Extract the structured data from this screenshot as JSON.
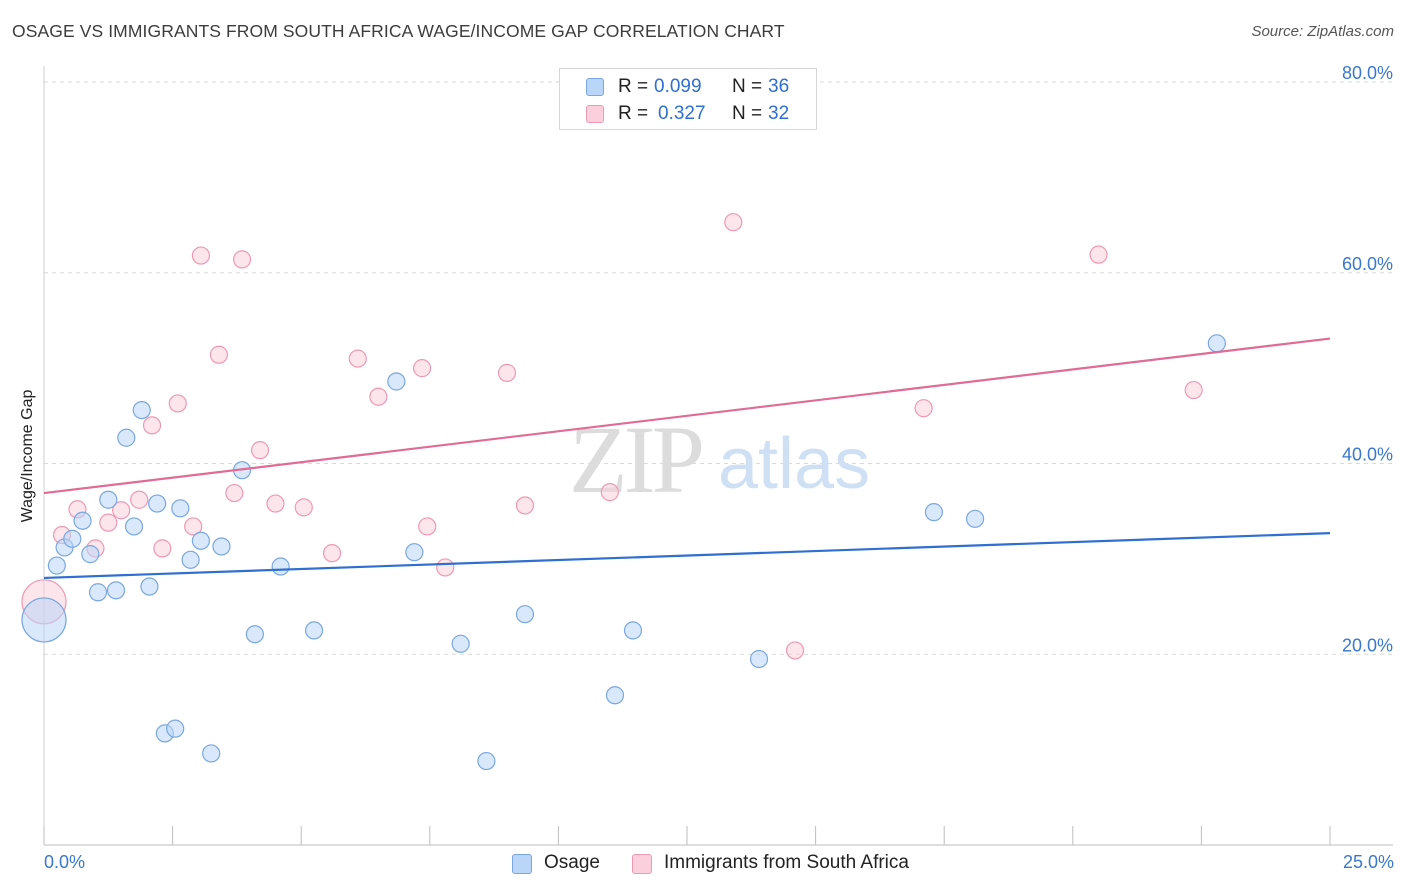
{
  "title": "OSAGE VS IMMIGRANTS FROM SOUTH AFRICA WAGE/INCOME GAP CORRELATION CHART",
  "source": "Source: ZipAtlas.com",
  "watermark": {
    "zip": "ZIP",
    "atlas": "atlas"
  },
  "legend": {
    "rows": [
      {
        "r_label": "R =",
        "r_value": "0.099",
        "n_label": "N =",
        "n_value": "36",
        "color": "#b9d5f7",
        "border": "#7aa7e0"
      },
      {
        "r_label": "R =",
        "r_value": "0.327",
        "n_label": "N =",
        "n_value": "32",
        "color": "#fbcfdc",
        "border": "#ee99b4"
      }
    ]
  },
  "colors": {
    "blue_fill": "#b9d5f7",
    "blue_stroke": "#7aa7e0",
    "blue_line": "#2e6fd1",
    "pink_fill": "#fbcfdc",
    "pink_stroke": "#ee99b4",
    "pink_line": "#e06b94",
    "axis_label": "#3a78cc",
    "grid": "#d9d9d9"
  },
  "chart_data": {
    "type": "scatter",
    "title": "OSAGE VS IMMIGRANTS FROM SOUTH AFRICA WAGE/INCOME GAP CORRELATION CHART",
    "xlabel": "",
    "ylabel": "Wage/Income Gap",
    "xlim": [
      0,
      25
    ],
    "ylim": [
      0,
      80
    ],
    "x_tick_labels": [
      "0.0%",
      "25.0%"
    ],
    "y_ticks": [
      20,
      40,
      60,
      80
    ],
    "y_tick_labels": [
      "20.0%",
      "40.0%",
      "60.0%",
      "80.0%"
    ],
    "grid": true,
    "legend_position": "top-center",
    "series": [
      {
        "name": "Osage",
        "color": "#b9d5f7",
        "trend": {
          "x": [
            0,
            25
          ],
          "y": [
            28.0,
            32.7
          ]
        },
        "points": [
          {
            "x": 0.0,
            "y": 23.6,
            "size": "large"
          },
          {
            "x": 0.25,
            "y": 29.3
          },
          {
            "x": 0.4,
            "y": 31.2
          },
          {
            "x": 0.55,
            "y": 32.1
          },
          {
            "x": 0.75,
            "y": 34.0
          },
          {
            "x": 0.9,
            "y": 30.5
          },
          {
            "x": 1.05,
            "y": 26.5
          },
          {
            "x": 1.25,
            "y": 36.2
          },
          {
            "x": 1.4,
            "y": 26.7
          },
          {
            "x": 1.6,
            "y": 42.7
          },
          {
            "x": 1.75,
            "y": 33.4
          },
          {
            "x": 1.9,
            "y": 45.6
          },
          {
            "x": 2.05,
            "y": 27.1
          },
          {
            "x": 2.2,
            "y": 35.8
          },
          {
            "x": 2.35,
            "y": 11.7
          },
          {
            "x": 2.55,
            "y": 12.2
          },
          {
            "x": 2.65,
            "y": 35.3
          },
          {
            "x": 2.85,
            "y": 29.9
          },
          {
            "x": 3.05,
            "y": 31.9
          },
          {
            "x": 3.25,
            "y": 9.6
          },
          {
            "x": 3.45,
            "y": 31.3
          },
          {
            "x": 3.85,
            "y": 39.3
          },
          {
            "x": 4.1,
            "y": 22.1
          },
          {
            "x": 4.6,
            "y": 29.2
          },
          {
            "x": 5.25,
            "y": 22.5
          },
          {
            "x": 6.85,
            "y": 48.6
          },
          {
            "x": 7.2,
            "y": 30.7
          },
          {
            "x": 8.1,
            "y": 21.1
          },
          {
            "x": 8.6,
            "y": 8.8
          },
          {
            "x": 9.35,
            "y": 24.2
          },
          {
            "x": 11.1,
            "y": 15.7
          },
          {
            "x": 11.45,
            "y": 22.5
          },
          {
            "x": 13.9,
            "y": 19.5
          },
          {
            "x": 17.3,
            "y": 34.9
          },
          {
            "x": 18.1,
            "y": 34.2
          },
          {
            "x": 22.8,
            "y": 52.6
          }
        ]
      },
      {
        "name": "Immigrants from South Africa",
        "color": "#fbcfdc",
        "trend": {
          "x": [
            0,
            25
          ],
          "y": [
            36.9,
            53.1
          ]
        },
        "points": [
          {
            "x": 0.0,
            "y": 25.5,
            "size": "large"
          },
          {
            "x": 0.35,
            "y": 32.5
          },
          {
            "x": 0.65,
            "y": 35.2
          },
          {
            "x": 1.0,
            "y": 31.1
          },
          {
            "x": 1.25,
            "y": 33.8
          },
          {
            "x": 1.5,
            "y": 35.1
          },
          {
            "x": 1.85,
            "y": 36.2
          },
          {
            "x": 2.1,
            "y": 44.0
          },
          {
            "x": 2.3,
            "y": 31.1
          },
          {
            "x": 2.6,
            "y": 46.3
          },
          {
            "x": 2.9,
            "y": 33.4
          },
          {
            "x": 3.05,
            "y": 61.8
          },
          {
            "x": 3.4,
            "y": 51.4
          },
          {
            "x": 3.7,
            "y": 36.9
          },
          {
            "x": 3.85,
            "y": 61.4
          },
          {
            "x": 4.2,
            "y": 41.4
          },
          {
            "x": 4.5,
            "y": 35.8
          },
          {
            "x": 5.05,
            "y": 35.4
          },
          {
            "x": 5.6,
            "y": 30.6
          },
          {
            "x": 6.1,
            "y": 51.0
          },
          {
            "x": 6.5,
            "y": 47.0
          },
          {
            "x": 7.35,
            "y": 50.0
          },
          {
            "x": 7.45,
            "y": 33.4
          },
          {
            "x": 7.8,
            "y": 29.1
          },
          {
            "x": 9.0,
            "y": 49.5
          },
          {
            "x": 9.35,
            "y": 35.6
          },
          {
            "x": 11.0,
            "y": 37.0
          },
          {
            "x": 13.4,
            "y": 65.3
          },
          {
            "x": 14.6,
            "y": 20.4
          },
          {
            "x": 17.1,
            "y": 45.8
          },
          {
            "x": 20.5,
            "y": 61.9
          },
          {
            "x": 22.35,
            "y": 47.7
          }
        ]
      }
    ]
  }
}
